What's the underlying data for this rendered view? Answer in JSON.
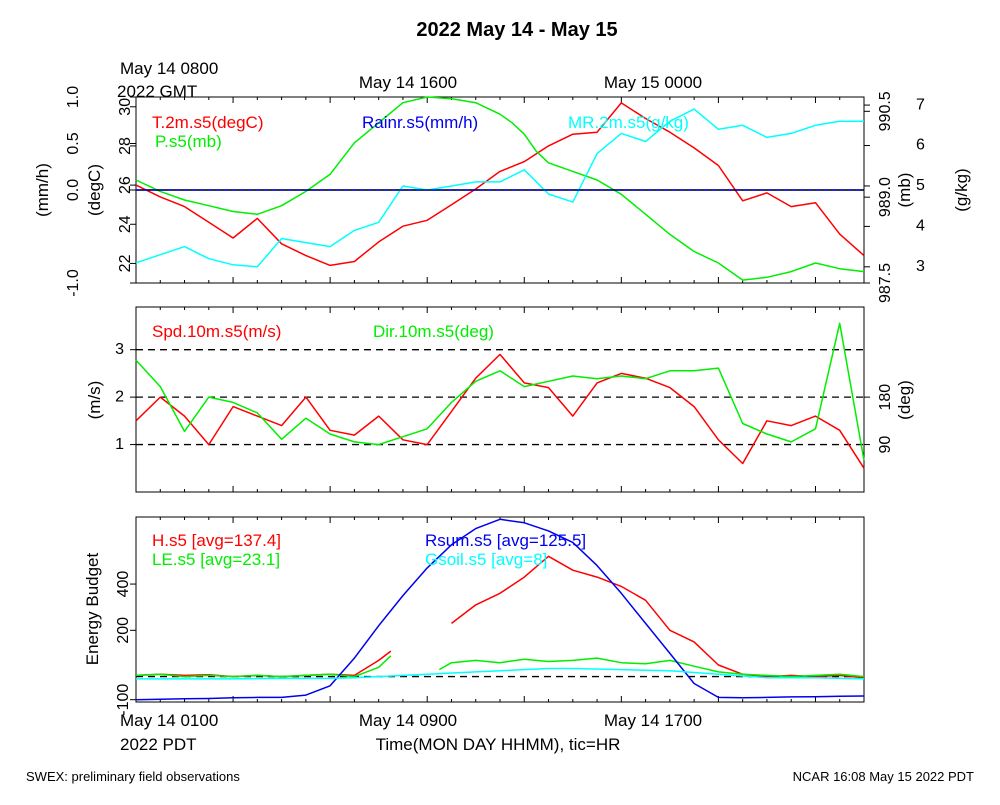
{
  "title": "2022 May 14 - May 15",
  "top_axis": {
    "first_line1": "May 14 0800",
    "first_line2": "2022 GMT",
    "labels": [
      "May 14 1600",
      "May 15 0000"
    ]
  },
  "bottom_axis": {
    "first_line1": "May 14 0100",
    "first_line2": "2022 PDT",
    "labels": [
      "May 14 0900",
      "May 14 1700"
    ],
    "title": "Time(MON DAY HHMM), tic=HR"
  },
  "footer": {
    "left": "SWEX: preliminary field observations",
    "right": "NCAR 16:08 May 15 2022 PDT"
  },
  "colors": {
    "red": "#ff0000",
    "green": "#00ee00",
    "blue": "#0000ee",
    "cyan": "#00ffff"
  },
  "chart_data": [
    {
      "type": "line",
      "panel": "top",
      "x_unit": "hours since May 14 0100 PDT",
      "xlim": [
        0,
        30
      ],
      "axes": {
        "left_outer": {
          "label": "(mm/h)",
          "lim": [
            -1.0,
            1.0
          ],
          "ticks": [
            "-1.0",
            "0.0",
            "0.5",
            "1.0"
          ]
        },
        "left_inner": {
          "label": "(degC)",
          "lim": [
            21.0,
            30.5
          ],
          "ticks": [
            "22",
            "24",
            "26",
            "28",
            "30"
          ]
        },
        "right_inner": {
          "label": "(mb)",
          "lim": [
            987.5,
            990.75
          ],
          "ticks": [
            "987.5",
            "989.0",
            "990.5"
          ]
        },
        "right_outer": {
          "label": "(g/kg)",
          "lim": [
            2.6,
            7.2
          ],
          "ticks": [
            "3",
            "4",
            "5",
            "6",
            "7"
          ]
        }
      },
      "series": [
        {
          "name": "T.2m.s5(degC)",
          "axis": "left_inner",
          "color": "#ff0000",
          "x": [
            0,
            1,
            2,
            3,
            4,
            5,
            6,
            7,
            8,
            9,
            10,
            11,
            12,
            13,
            14,
            15,
            16,
            17,
            18,
            19,
            20,
            21,
            22,
            23,
            24,
            25,
            26,
            27,
            28,
            29,
            30
          ],
          "y": [
            26.0,
            25.4,
            24.9,
            24.1,
            23.3,
            24.3,
            23.0,
            22.4,
            21.9,
            22.1,
            23.1,
            23.9,
            24.2,
            25.0,
            25.8,
            26.7,
            27.2,
            28.0,
            28.6,
            28.7,
            30.2,
            29.4,
            28.7,
            27.9,
            27.0,
            25.2,
            25.6,
            24.9,
            25.1,
            23.5,
            22.4
          ]
        },
        {
          "name": "P.s5(mb)",
          "axis": "right_inner",
          "color": "#00ee00",
          "x": [
            0,
            1,
            2,
            3,
            4,
            5,
            6,
            7,
            8,
            9,
            10,
            11,
            12,
            13,
            14,
            15,
            15.5,
            16,
            16.5,
            17,
            18,
            19,
            20,
            21,
            22,
            23,
            24,
            25,
            26,
            27,
            28,
            29,
            30
          ],
          "y": [
            989.3,
            989.1,
            988.95,
            988.85,
            988.75,
            988.7,
            988.85,
            989.1,
            989.4,
            989.95,
            990.3,
            990.65,
            990.75,
            990.72,
            990.65,
            990.45,
            990.3,
            990.1,
            989.8,
            989.6,
            989.45,
            989.3,
            989.05,
            988.7,
            988.35,
            988.05,
            987.85,
            987.55,
            987.6,
            987.7,
            987.85,
            987.75,
            987.7
          ]
        },
        {
          "name": "Rainr.s5(mm/h)",
          "axis": "left_outer",
          "color": "#0000ee",
          "x": [
            0,
            30
          ],
          "y": [
            0.0,
            0.0
          ]
        },
        {
          "name": "MR.2m.s5(g/kg)",
          "axis": "right_outer",
          "color": "#00ffff",
          "x": [
            0,
            1,
            2,
            3,
            4,
            5,
            6,
            7,
            8,
            9,
            10,
            11,
            12,
            13,
            14,
            15,
            16,
            17,
            18,
            19,
            20,
            21,
            22,
            23,
            24,
            25,
            26,
            27,
            28,
            29,
            30
          ],
          "y": [
            3.1,
            3.3,
            3.5,
            3.2,
            3.05,
            3.0,
            3.7,
            3.6,
            3.5,
            3.9,
            4.1,
            5.0,
            4.9,
            5.0,
            5.1,
            5.1,
            5.4,
            4.8,
            4.6,
            5.8,
            6.3,
            6.1,
            6.6,
            6.9,
            6.4,
            6.5,
            6.2,
            6.3,
            6.5,
            6.6,
            6.6
          ]
        }
      ]
    },
    {
      "type": "line",
      "panel": "middle",
      "xlim": [
        0,
        30
      ],
      "axes": {
        "left": {
          "label": "(m/s)",
          "lim": [
            0,
            3.9
          ],
          "ticks": [
            "1",
            "2",
            "3"
          ]
        },
        "right": {
          "label": "(deg)",
          "lim": [
            0,
            351
          ],
          "ticks": [
            "90",
            "180"
          ]
        }
      },
      "reference_lines": [
        1,
        2,
        3
      ],
      "series": [
        {
          "name": "Spd.10m.s5(m/s)",
          "axis": "left",
          "color": "#ff0000",
          "x": [
            0,
            1,
            2,
            3,
            4,
            5,
            6,
            7,
            8,
            9,
            10,
            11,
            12,
            13,
            14,
            15,
            16,
            17,
            18,
            19,
            20,
            21,
            22,
            23,
            24,
            25,
            26,
            27,
            28,
            29,
            30
          ],
          "y": [
            1.5,
            2.0,
            1.6,
            1.0,
            1.8,
            1.6,
            1.4,
            2.0,
            1.3,
            1.2,
            1.6,
            1.1,
            1.0,
            1.7,
            2.4,
            2.9,
            2.3,
            2.2,
            1.6,
            2.3,
            2.5,
            2.4,
            2.2,
            1.8,
            1.1,
            0.6,
            1.5,
            1.4,
            1.6,
            1.3,
            0.5
          ]
        },
        {
          "name": "Dir.10m.s5(deg)",
          "axis": "right",
          "color": "#00ee00",
          "x": [
            0,
            1,
            2,
            3,
            4,
            5,
            6,
            7,
            8,
            9,
            10,
            11,
            12,
            13,
            14,
            15,
            16,
            17,
            18,
            19,
            20,
            21,
            22,
            23,
            24,
            25,
            26,
            27,
            28,
            29,
            30
          ],
          "y": [
            250,
            200,
            115,
            180,
            170,
            150,
            100,
            140,
            110,
            95,
            90,
            105,
            120,
            170,
            210,
            230,
            200,
            210,
            220,
            215,
            220,
            215,
            230,
            230,
            235,
            130,
            110,
            95,
            120,
            320,
            60
          ]
        }
      ]
    },
    {
      "type": "line",
      "panel": "bottom",
      "xlim": [
        0,
        30
      ],
      "ylabel": "Energy Budget",
      "ylim": [
        -110,
        690
      ],
      "yticks": [
        "-100",
        "200",
        "400"
      ],
      "reference_lines": [
        0
      ],
      "series": [
        {
          "name": "H.s5 [avg=137.4]",
          "color": "#ff0000",
          "x": [
            0,
            1,
            2,
            3,
            4,
            5,
            6,
            7,
            8,
            9,
            10,
            10.5,
            null,
            13,
            14,
            15,
            16,
            17,
            18,
            19,
            20,
            21,
            22,
            23,
            24,
            25,
            26,
            27,
            28,
            29,
            30
          ],
          "y": [
            5,
            10,
            5,
            8,
            0,
            5,
            0,
            5,
            10,
            5,
            70,
            110,
            null,
            230,
            310,
            360,
            430,
            520,
            460,
            430,
            390,
            330,
            200,
            150,
            50,
            10,
            0,
            5,
            0,
            5,
            -5
          ]
        },
        {
          "name": "LE.s5 [avg=23.1]",
          "color": "#00ee00",
          "x": [
            0,
            1,
            2,
            3,
            4,
            5,
            6,
            7,
            8,
            9,
            10,
            10.5,
            null,
            12.5,
            13,
            14,
            15,
            16,
            17,
            18,
            19,
            20,
            21,
            22,
            23,
            24,
            25,
            26,
            27,
            28,
            29,
            30
          ],
          "y": [
            5,
            10,
            0,
            5,
            0,
            5,
            0,
            5,
            10,
            0,
            40,
            90,
            null,
            30,
            60,
            70,
            60,
            75,
            65,
            70,
            80,
            60,
            55,
            70,
            45,
            20,
            10,
            5,
            0,
            5,
            10,
            0
          ]
        },
        {
          "name": "Rsum.s5 [avg=125.5]",
          "color": "#0000ee",
          "x": [
            0,
            1,
            2,
            3,
            4,
            5,
            6,
            7,
            8,
            9,
            10,
            11,
            12,
            13,
            14,
            15,
            16,
            17,
            18,
            19,
            20,
            21,
            22,
            23,
            24,
            25,
            26,
            27,
            28,
            29,
            30
          ],
          "y": [
            -100,
            -98,
            -96,
            -95,
            -92,
            -90,
            -90,
            -80,
            -40,
            80,
            220,
            350,
            470,
            570,
            640,
            680,
            665,
            630,
            580,
            480,
            360,
            230,
            100,
            -30,
            -90,
            -92,
            -90,
            -88,
            -87,
            -85,
            -84
          ]
        },
        {
          "name": "Gsoil.s5 [avg=8]",
          "color": "#00ffff",
          "x": [
            0,
            2,
            4,
            6,
            8,
            9,
            10,
            12,
            14,
            16,
            17,
            18,
            20,
            22,
            24,
            26,
            28,
            30
          ],
          "y": [
            -10,
            -10,
            -10,
            -8,
            -8,
            -5,
            0,
            10,
            20,
            30,
            35,
            35,
            30,
            25,
            10,
            -5,
            -5,
            -10
          ]
        }
      ]
    }
  ]
}
